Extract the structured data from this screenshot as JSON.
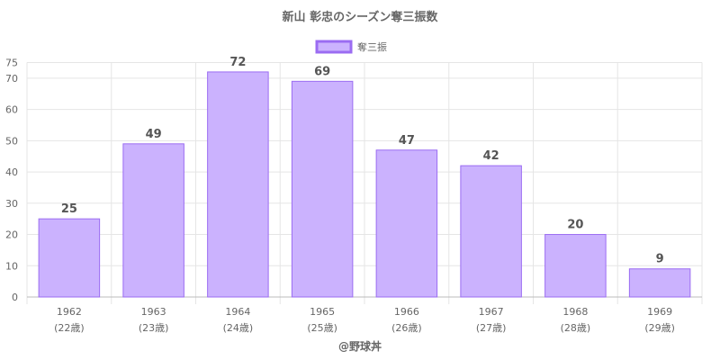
{
  "chart_data": {
    "type": "bar",
    "title": "新山 彰忠のシーズン奪三振数",
    "legend": {
      "label": "奪三振",
      "position": "top"
    },
    "categories": [
      "1962",
      "1963",
      "1964",
      "1965",
      "1966",
      "1967",
      "1968",
      "1969"
    ],
    "category_sublabels": [
      "(22歳)",
      "(23歳)",
      "(24歳)",
      "(25歳)",
      "(26歳)",
      "(27歳)",
      "(28歳)",
      "(29歳)"
    ],
    "series": [
      {
        "name": "奪三振",
        "values": [
          25,
          49,
          72,
          69,
          47,
          42,
          20,
          9
        ]
      }
    ],
    "ylim": [
      0,
      75
    ],
    "yticks": [
      0,
      10,
      20,
      30,
      40,
      50,
      60,
      70,
      75
    ],
    "grid": true,
    "colors": {
      "bar_fill": "#cbb2fe",
      "bar_border": "#9b6cf2",
      "grid": "#e5e5e5",
      "axis": "#bbbbbb"
    }
  },
  "credit": "@野球丼"
}
